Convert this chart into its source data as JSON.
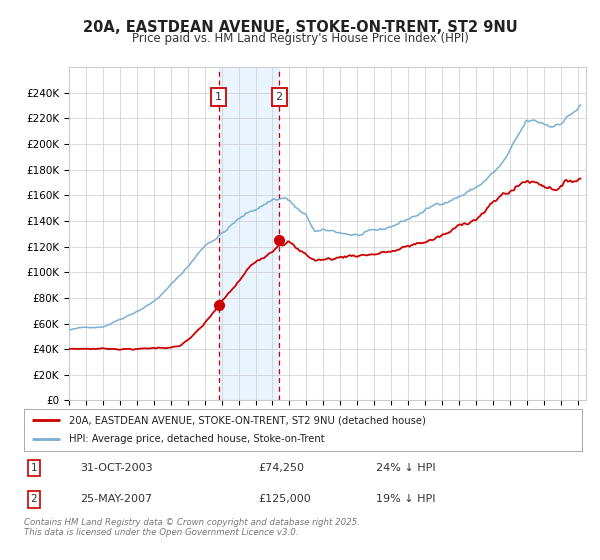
{
  "title": "20A, EASTDEAN AVENUE, STOKE-ON-TRENT, ST2 9NU",
  "subtitle": "Price paid vs. HM Land Registry's House Price Index (HPI)",
  "ylim": [
    0,
    260000
  ],
  "xlim_start": 1995.0,
  "xlim_end": 2025.5,
  "yticks": [
    0,
    20000,
    40000,
    60000,
    80000,
    100000,
    120000,
    140000,
    160000,
    180000,
    200000,
    220000,
    240000
  ],
  "ytick_labels": [
    "£0",
    "£20K",
    "£40K",
    "£60K",
    "£80K",
    "£100K",
    "£120K",
    "£140K",
    "£160K",
    "£180K",
    "£200K",
    "£220K",
    "£240K"
  ],
  "hpi_color": "#7ab0d4",
  "price_color": "#cc0000",
  "sale1_date": 2003.83,
  "sale1_price": 74250,
  "sale2_date": 2007.39,
  "sale2_price": 125000,
  "legend_label1": "20A, EASTDEAN AVENUE, STOKE-ON-TRENT, ST2 9NU (detached house)",
  "legend_label2": "HPI: Average price, detached house, Stoke-on-Trent",
  "annotation1_label": "1",
  "annotation1_text": "31-OCT-2003",
  "annotation1_price": "£74,250",
  "annotation1_pct": "24% ↓ HPI",
  "annotation2_label": "2",
  "annotation2_text": "25-MAY-2007",
  "annotation2_price": "£125,000",
  "annotation2_pct": "19% ↓ HPI",
  "footer": "Contains HM Land Registry data © Crown copyright and database right 2025.\nThis data is licensed under the Open Government Licence v3.0.",
  "background_color": "#ffffff",
  "grid_color": "#cccccc",
  "shade_color": "#ddeeff"
}
